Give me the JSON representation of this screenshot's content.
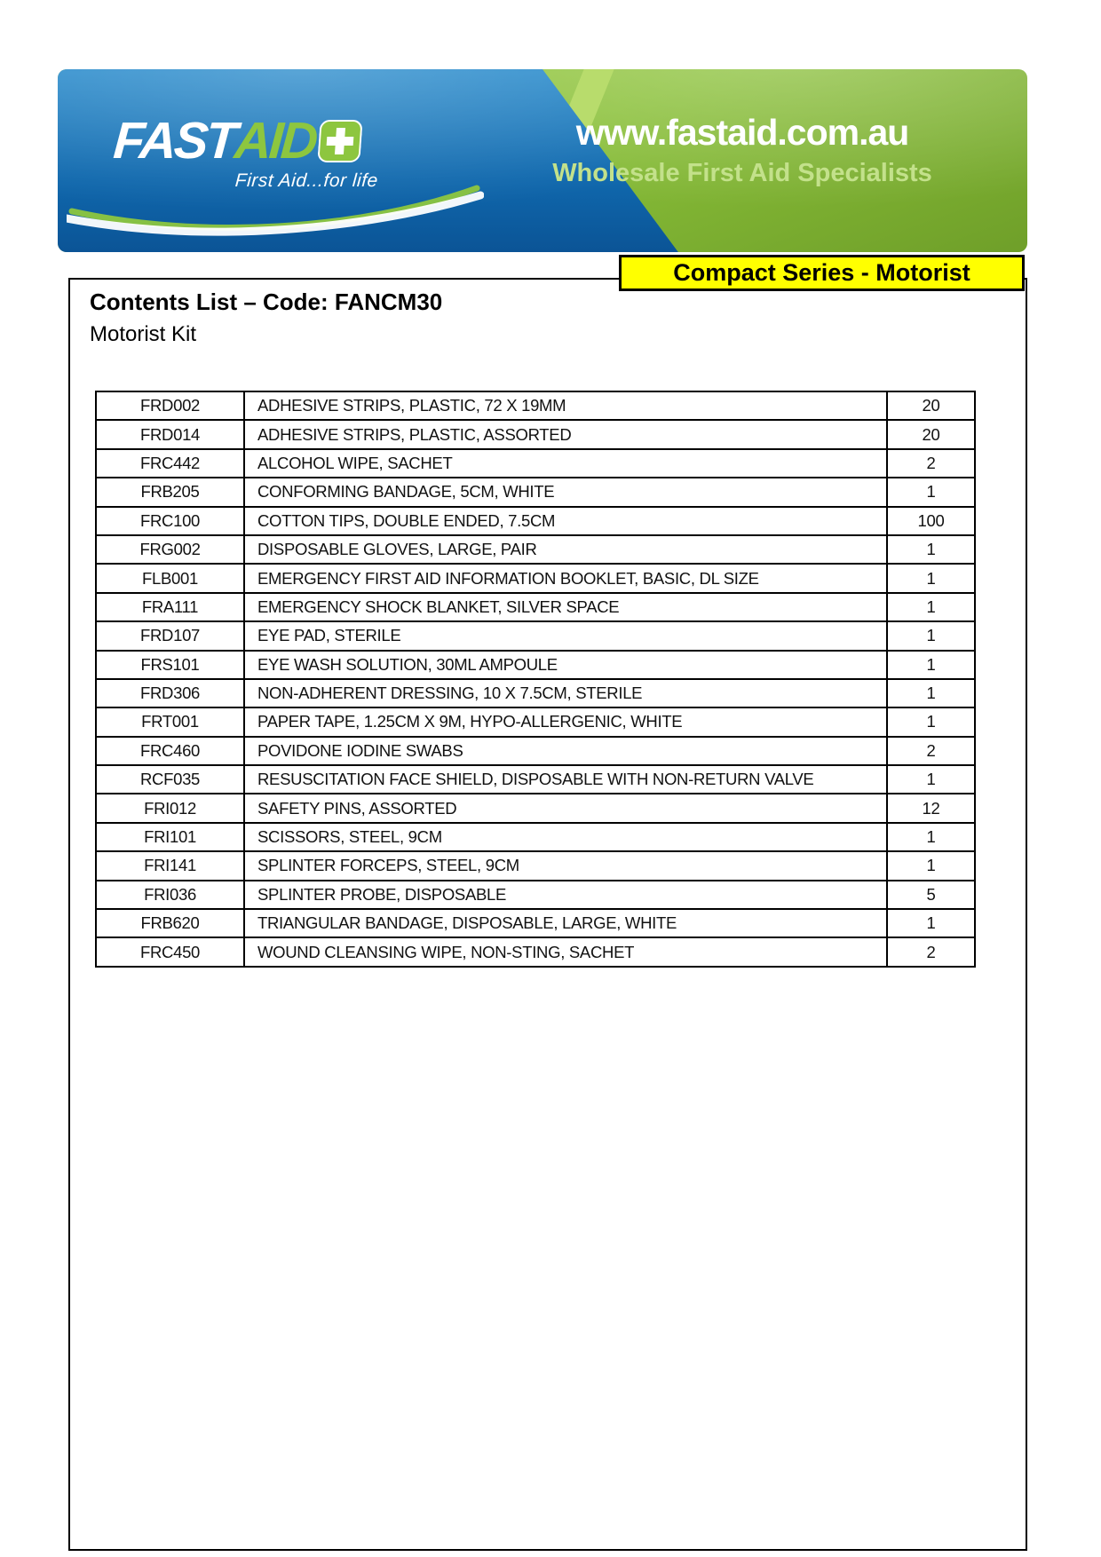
{
  "header": {
    "logo_fast": "FAST",
    "logo_aid": "AID",
    "cross_icon": "first-aid-cross-icon",
    "tagline": "First Aid...for life",
    "website": "www.fastaid.com.au",
    "website_subtitle": "Wholesale First Aid Specialists",
    "colors": {
      "blue": "#1272B8",
      "green": "#8CC63E",
      "logo_green": "#8DC63F"
    }
  },
  "content": {
    "title": "Contents List – Code: FANCM30",
    "subtitle": "Motorist Kit",
    "badge": {
      "label": "Compact Series - Motorist",
      "bg": "#FFFF00"
    }
  },
  "table": {
    "columns": [
      "code",
      "description",
      "qty"
    ],
    "rows": [
      {
        "code": "FRD002",
        "description": "ADHESIVE STRIPS, PLASTIC, 72 X 19MM",
        "qty": "20"
      },
      {
        "code": "FRD014",
        "description": "ADHESIVE STRIPS, PLASTIC, ASSORTED",
        "qty": "20"
      },
      {
        "code": "FRC442",
        "description": "ALCOHOL WIPE, SACHET",
        "qty": "2"
      },
      {
        "code": "FRB205",
        "description": "CONFORMING BANDAGE, 5CM, WHITE",
        "qty": "1"
      },
      {
        "code": "FRC100",
        "description": "COTTON TIPS, DOUBLE ENDED, 7.5CM",
        "qty": "100"
      },
      {
        "code": "FRG002",
        "description": "DISPOSABLE GLOVES, LARGE, PAIR",
        "qty": "1"
      },
      {
        "code": "FLB001",
        "description": "EMERGENCY FIRST AID INFORMATION BOOKLET, BASIC, DL SIZE",
        "qty": "1"
      },
      {
        "code": "FRA111",
        "description": "EMERGENCY SHOCK BLANKET, SILVER SPACE",
        "qty": "1"
      },
      {
        "code": "FRD107",
        "description": "EYE PAD, STERILE",
        "qty": "1"
      },
      {
        "code": "FRS101",
        "description": "EYE WASH SOLUTION, 30ML AMPOULE",
        "qty": "1"
      },
      {
        "code": "FRD306",
        "description": "NON-ADHERENT DRESSING, 10 X 7.5CM, STERILE",
        "qty": "1"
      },
      {
        "code": "FRT001",
        "description": "PAPER TAPE, 1.25CM X 9M, HYPO-ALLERGENIC, WHITE",
        "qty": "1"
      },
      {
        "code": "FRC460",
        "description": "POVIDONE IODINE SWABS",
        "qty": "2"
      },
      {
        "code": "RCF035",
        "description": "RESUSCITATION FACE SHIELD, DISPOSABLE WITH NON-RETURN VALVE",
        "qty": "1"
      },
      {
        "code": "FRI012",
        "description": "SAFETY PINS, ASSORTED",
        "qty": "12"
      },
      {
        "code": "FRI101",
        "description": "SCISSORS, STEEL, 9CM",
        "qty": "1"
      },
      {
        "code": "FRI141",
        "description": "SPLINTER FORCEPS, STEEL, 9CM",
        "qty": "1"
      },
      {
        "code": "FRI036",
        "description": "SPLINTER PROBE, DISPOSABLE",
        "qty": "5"
      },
      {
        "code": "FRB620",
        "description": "TRIANGULAR BANDAGE, DISPOSABLE, LARGE, WHITE",
        "qty": "1"
      },
      {
        "code": "FRC450",
        "description": "WOUND CLEANSING WIPE, NON-STING, SACHET",
        "qty": "2"
      }
    ]
  }
}
